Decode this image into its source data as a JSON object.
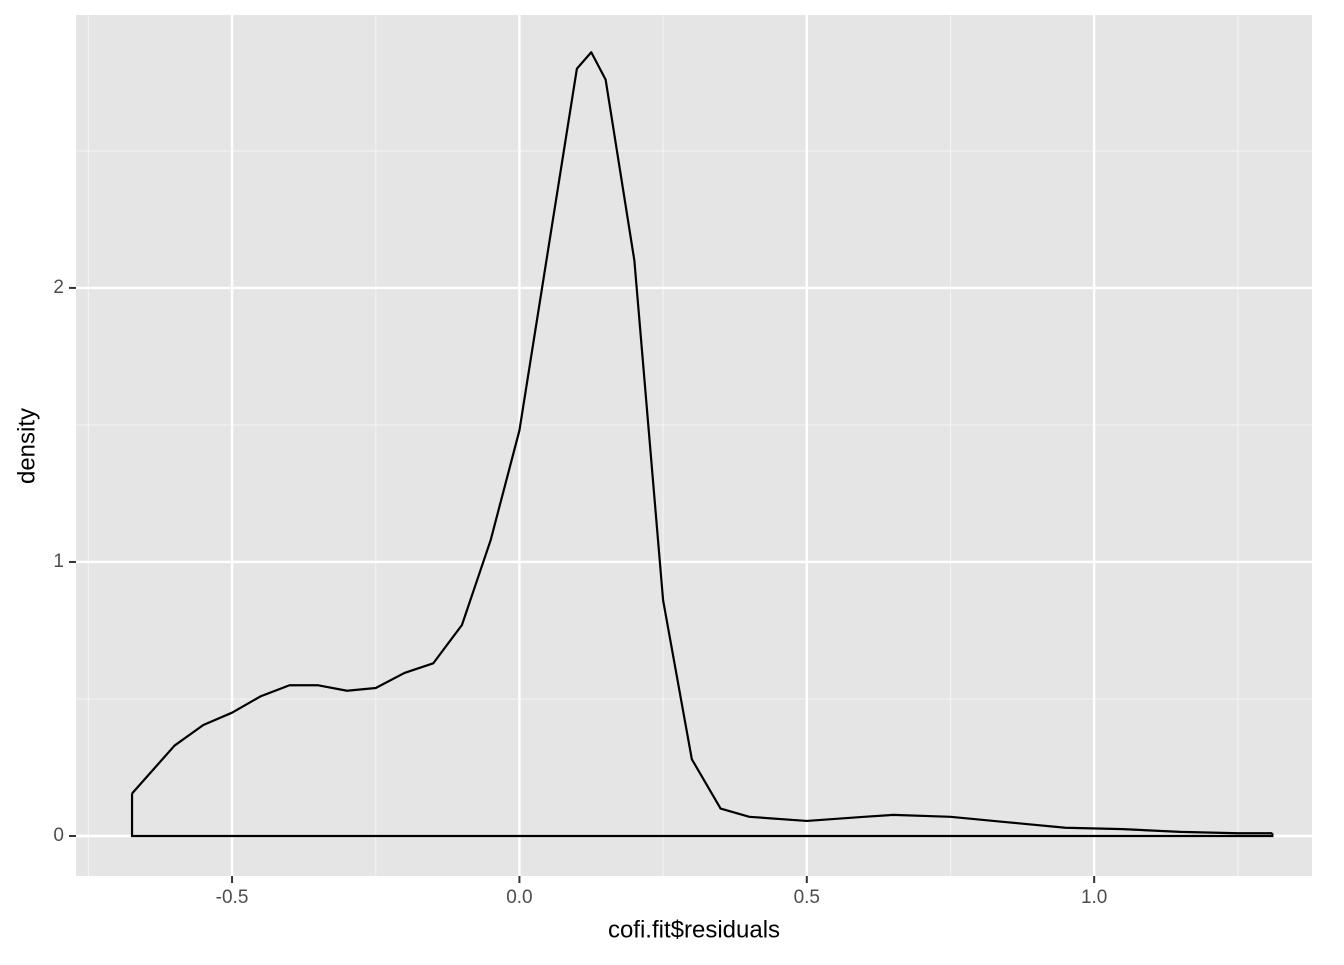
{
  "chart_data": {
    "type": "density",
    "x_label": "cofi.fit$residuals",
    "y_label": "density",
    "x": [
      -0.674,
      -0.6,
      -0.55,
      -0.5,
      -0.45,
      -0.4,
      -0.35,
      -0.3,
      -0.25,
      -0.2,
      -0.15,
      -0.1,
      -0.05,
      0,
      0.05,
      0.1,
      0.125,
      0.15,
      0.2,
      0.25,
      0.3,
      0.35,
      0.4,
      0.5,
      0.6,
      0.65,
      0.75,
      0.85,
      0.95,
      1.05,
      1.15,
      1.25,
      1.31
    ],
    "values": [
      0.155,
      0.33,
      0.405,
      0.45,
      0.51,
      0.55,
      0.55,
      0.53,
      0.54,
      0.595,
      0.63,
      0.77,
      1.08,
      1.48,
      2.14,
      2.8,
      2.86,
      2.76,
      2.1,
      0.86,
      0.28,
      0.1,
      0.07,
      0.055,
      0.07,
      0.077,
      0.07,
      0.05,
      0.03,
      0.025,
      0.015,
      0.01,
      0.01
    ],
    "color": "#000000",
    "xlim": [
      -0.7715,
      1.379
    ],
    "ylim": [
      -0.146,
      2.996
    ],
    "xticks": [
      -0.5,
      {
        "value": 0,
        "label": "0.0"
      },
      0.5,
      {
        "value": 1,
        "label": "1.0"
      }
    ],
    "yticks": [
      0,
      1,
      2
    ],
    "xminor": [
      -0.75,
      -0.25,
      0.25,
      0.75,
      1.25
    ],
    "yminor": [
      0.5,
      1.5,
      2.5
    ],
    "grid": true
  }
}
